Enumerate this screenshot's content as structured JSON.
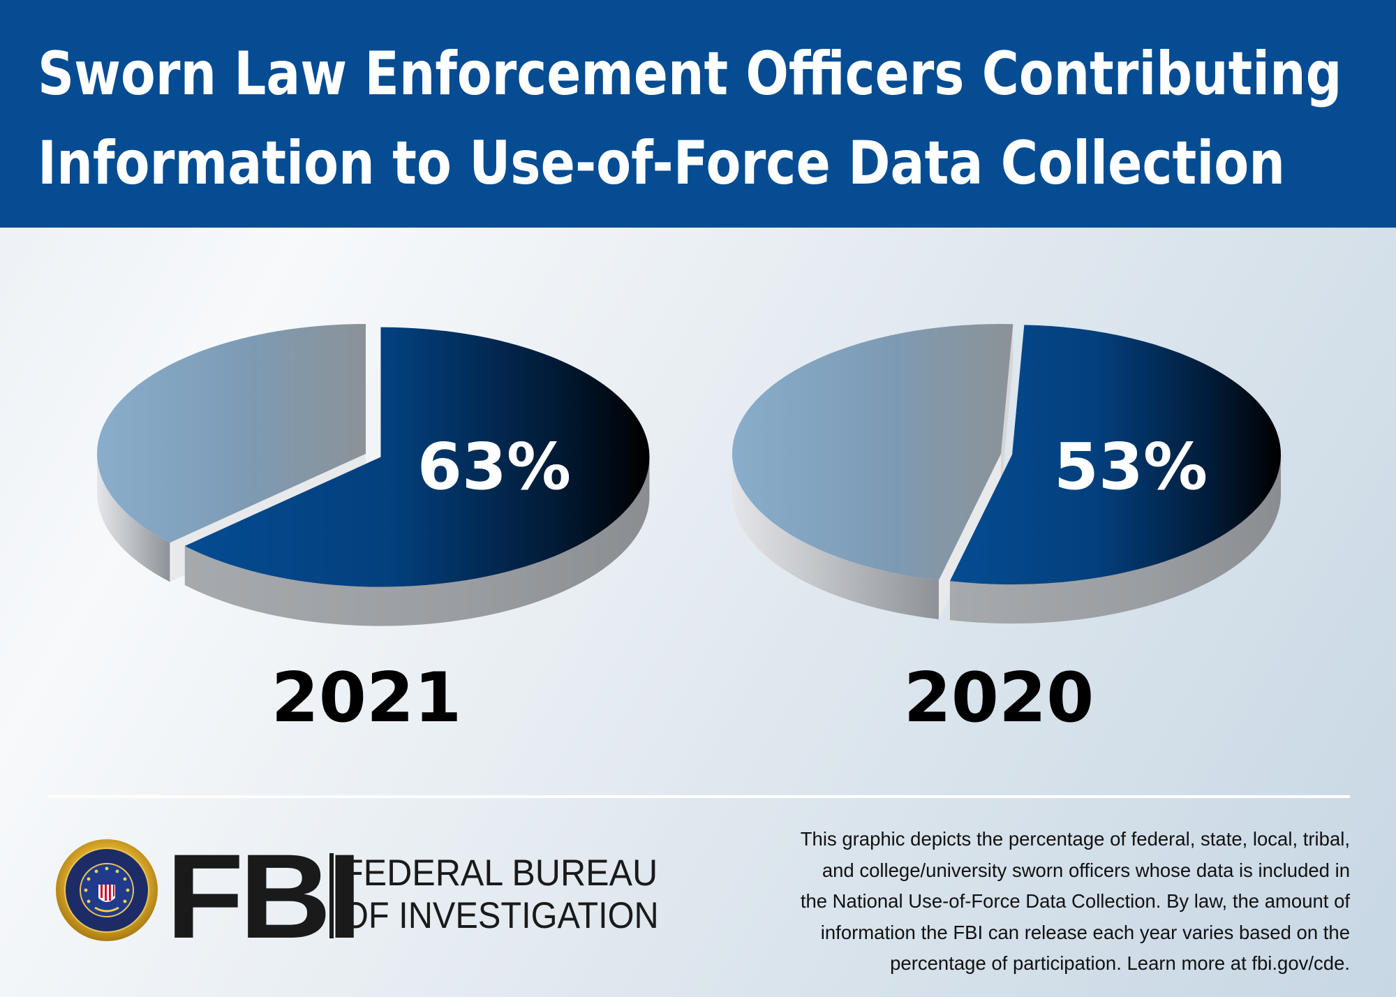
{
  "title": {
    "line1": "Sworn Law Enforcement Officers Contributing",
    "line2": "Information to Use-of-Force Data Collection"
  },
  "chart_data": [
    {
      "type": "pie",
      "year": "2021",
      "slices": [
        {
          "label": "63%",
          "value": 63,
          "color": "#054c92"
        },
        {
          "label": "",
          "value": 37,
          "color": "#8aaac6"
        }
      ]
    },
    {
      "type": "pie",
      "year": "2020",
      "slices": [
        {
          "label": "53%",
          "value": 53,
          "color": "#054c92"
        },
        {
          "label": "",
          "value": 47,
          "color": "#8aaac6"
        }
      ]
    }
  ],
  "logo": {
    "letters": "FBI",
    "line1": "FEDERAL BUREAU",
    "line2": "OF INVESTIGATION",
    "seal_text": "DEPARTMENT OF JUSTICE · FEDERAL BUREAU OF INVESTIGATION"
  },
  "note": {
    "lines": [
      "This graphic depicts the percentage of federal, state, local, tribal,",
      "and college/university sworn officers whose data is included in",
      "the National Use-of-Force Data Collection. By law, the amount of",
      "information the FBI can release each year varies based on the",
      "percentage of participation. Learn more at fbi.gov/cde."
    ]
  },
  "colors": {
    "header": "#054c92",
    "participating": "#054c92",
    "not_participating": "#8aaac6",
    "text": "#000000"
  }
}
